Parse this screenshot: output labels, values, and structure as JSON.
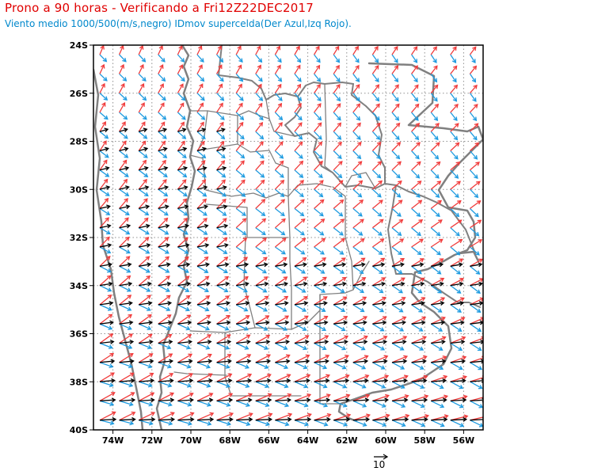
{
  "header": {
    "title": "Prono a 90 horas - Verificando a Fri12Z22DEC2017",
    "subtitle": "Viento medio 1000/500(m/s,negro) IDmov supercelda(Der Azul,Izq Rojo)."
  },
  "map": {
    "lon_range": [
      -75,
      -55
    ],
    "lat_range": [
      -40,
      -24
    ],
    "lon_ticks": [
      {
        "value": -74,
        "label": "74W"
      },
      {
        "value": -72,
        "label": "72W"
      },
      {
        "value": -70,
        "label": "70W"
      },
      {
        "value": -68,
        "label": "68W"
      },
      {
        "value": -66,
        "label": "66W"
      },
      {
        "value": -64,
        "label": "64W"
      },
      {
        "value": -62,
        "label": "62W"
      },
      {
        "value": -60,
        "label": "60W"
      },
      {
        "value": -58,
        "label": "58W"
      },
      {
        "value": -56,
        "label": "56W"
      }
    ],
    "lat_ticks": [
      {
        "value": -24,
        "label": "24S"
      },
      {
        "value": -26,
        "label": "26S"
      },
      {
        "value": -28,
        "label": "28S"
      },
      {
        "value": -30,
        "label": "30S"
      },
      {
        "value": -32,
        "label": "32S"
      },
      {
        "value": -34,
        "label": "34S"
      },
      {
        "value": -36,
        "label": "36S"
      },
      {
        "value": -38,
        "label": "38S"
      },
      {
        "value": -40,
        "label": "40S"
      }
    ],
    "colors": {
      "mean_wind": "#000000",
      "right_mover": "#1e9be0",
      "left_mover": "#f03c3c",
      "borders": "#808080",
      "grid": "#909090"
    },
    "reference_vector": {
      "label": "10",
      "magnitude": 10
    }
  }
}
